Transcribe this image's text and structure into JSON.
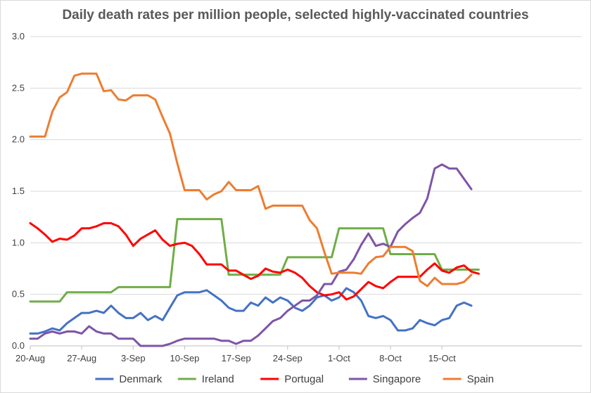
{
  "chart_data": {
    "type": "line",
    "title": "Daily death rates per million people, selected highly-vaccinated countries",
    "xlabel": "",
    "ylabel": "",
    "ylim": [
      0,
      3.0
    ],
    "yticks": [
      "0.0",
      "0.5",
      "1.0",
      "1.5",
      "2.0",
      "2.5",
      "3.0"
    ],
    "x_tick_labels": [
      "20-Aug",
      "27-Aug",
      "3-Sep",
      "10-Sep",
      "17-Sep",
      "24-Sep",
      "1-Oct",
      "8-Oct",
      "15-Oct"
    ],
    "x_start": "20-Aug",
    "x_end": "21-Oct",
    "gridlines": true,
    "legend_position": "bottom",
    "series": [
      {
        "name": "Denmark",
        "color": "#4472c4",
        "values": [
          0.12,
          0.12,
          0.14,
          0.17,
          0.15,
          0.22,
          0.27,
          0.32,
          0.32,
          0.34,
          0.32,
          0.39,
          0.32,
          0.27,
          0.27,
          0.32,
          0.25,
          0.29,
          0.25,
          0.37,
          0.49,
          0.52,
          0.52,
          0.52,
          0.54,
          0.49,
          0.44,
          0.37,
          0.34,
          0.34,
          0.42,
          0.39,
          0.47,
          0.42,
          0.47,
          0.44,
          0.37,
          0.34,
          0.39,
          0.47,
          0.49,
          0.44,
          0.47,
          0.56,
          0.52,
          0.44,
          0.29,
          0.27,
          0.29,
          0.25,
          0.15,
          0.15,
          0.17,
          0.25,
          0.22,
          0.2,
          0.25,
          0.27,
          0.39,
          0.42,
          0.39
        ]
      },
      {
        "name": "Ireland",
        "color": "#70ad47",
        "values": [
          0.43,
          0.43,
          0.43,
          0.43,
          0.43,
          0.52,
          0.52,
          0.52,
          0.52,
          0.52,
          0.52,
          0.52,
          0.57,
          0.57,
          0.57,
          0.57,
          0.57,
          0.57,
          0.57,
          0.57,
          1.23,
          1.23,
          1.23,
          1.23,
          1.23,
          1.23,
          1.23,
          0.69,
          0.69,
          0.69,
          0.69,
          0.69,
          0.69,
          0.69,
          0.69,
          0.86,
          0.86,
          0.86,
          0.86,
          0.86,
          0.86,
          0.86,
          1.14,
          1.14,
          1.14,
          1.14,
          1.14,
          1.14,
          1.14,
          0.89,
          0.89,
          0.89,
          0.89,
          0.89,
          0.89,
          0.89,
          0.74,
          0.74,
          0.74,
          0.74,
          0.74,
          0.74
        ]
      },
      {
        "name": "Portugal",
        "color": "#ff0000",
        "values": [
          1.19,
          1.14,
          1.08,
          1.01,
          1.04,
          1.03,
          1.07,
          1.14,
          1.14,
          1.16,
          1.19,
          1.19,
          1.16,
          1.08,
          0.97,
          1.04,
          1.08,
          1.12,
          1.03,
          0.97,
          0.99,
          1.0,
          0.97,
          0.89,
          0.79,
          0.79,
          0.79,
          0.73,
          0.73,
          0.69,
          0.65,
          0.68,
          0.75,
          0.72,
          0.71,
          0.74,
          0.71,
          0.66,
          0.58,
          0.52,
          0.49,
          0.5,
          0.52,
          0.45,
          0.48,
          0.55,
          0.62,
          0.58,
          0.56,
          0.62,
          0.67,
          0.67,
          0.67,
          0.67,
          0.74,
          0.8,
          0.73,
          0.71,
          0.76,
          0.78,
          0.72,
          0.7
        ]
      },
      {
        "name": "Singapore",
        "color": "#7f54a8",
        "values": [
          0.07,
          0.07,
          0.12,
          0.14,
          0.12,
          0.14,
          0.14,
          0.12,
          0.19,
          0.14,
          0.12,
          0.12,
          0.07,
          0.07,
          0.07,
          0.0,
          0.0,
          0.0,
          0.0,
          0.02,
          0.05,
          0.07,
          0.07,
          0.07,
          0.07,
          0.07,
          0.05,
          0.05,
          0.02,
          0.05,
          0.05,
          0.1,
          0.17,
          0.24,
          0.27,
          0.34,
          0.39,
          0.44,
          0.44,
          0.49,
          0.6,
          0.6,
          0.72,
          0.74,
          0.84,
          0.98,
          1.09,
          0.97,
          0.99,
          0.96,
          1.11,
          1.18,
          1.24,
          1.29,
          1.43,
          1.72,
          1.76,
          1.72,
          1.72,
          1.62,
          1.52
        ]
      },
      {
        "name": "Spain",
        "color": "#ed7d31",
        "values": [
          2.03,
          2.03,
          2.03,
          2.27,
          2.41,
          2.46,
          2.62,
          2.64,
          2.64,
          2.64,
          2.47,
          2.48,
          2.39,
          2.38,
          2.43,
          2.43,
          2.43,
          2.39,
          2.22,
          2.06,
          1.77,
          1.51,
          1.51,
          1.51,
          1.42,
          1.47,
          1.5,
          1.59,
          1.51,
          1.51,
          1.51,
          1.55,
          1.33,
          1.36,
          1.36,
          1.36,
          1.36,
          1.36,
          1.22,
          1.14,
          0.91,
          0.7,
          0.71,
          0.71,
          0.71,
          0.7,
          0.8,
          0.86,
          0.87,
          0.96,
          0.96,
          0.96,
          0.92,
          0.63,
          0.58,
          0.66,
          0.6,
          0.6,
          0.6,
          0.62,
          0.69
        ]
      }
    ]
  }
}
